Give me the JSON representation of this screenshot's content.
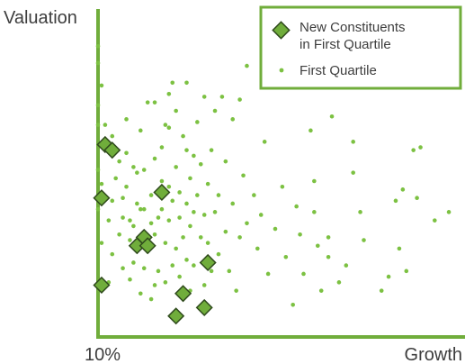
{
  "chart_data": {
    "type": "scatter",
    "title": "",
    "xlabel": "Growth",
    "ylabel": "Valuation",
    "x_tick_label": "10%",
    "xlim": [
      0,
      100
    ],
    "ylim": [
      0,
      100
    ],
    "grid": false,
    "legend_position": "top-right",
    "colors": {
      "points": "#7cc142",
      "diamond_fill": "#70ad3b",
      "diamond_stroke": "#2f4a1c",
      "axis": "#70ad3b",
      "legend_border": "#70ad3b"
    },
    "series": [
      {
        "name": "New Constituents\nin First Quartile",
        "marker": "diamond",
        "points": [
          [
            2,
            63
          ],
          [
            4,
            61
          ],
          [
            1,
            44
          ],
          [
            18,
            46
          ],
          [
            13,
            30
          ],
          [
            11,
            27
          ],
          [
            14,
            27
          ],
          [
            31,
            21
          ],
          [
            1,
            13
          ],
          [
            24,
            10
          ],
          [
            30,
            5
          ],
          [
            22,
            2
          ]
        ]
      },
      {
        "name": "First Quartile",
        "marker": "dot",
        "points": [
          [
            0,
            40
          ],
          [
            0,
            54
          ],
          [
            0,
            70
          ],
          [
            0,
            77
          ],
          [
            0,
            92
          ],
          [
            0,
            98
          ],
          [
            1,
            28
          ],
          [
            1,
            49
          ],
          [
            1,
            84
          ],
          [
            2,
            70
          ],
          [
            3,
            14
          ],
          [
            3,
            36
          ],
          [
            4,
            24
          ],
          [
            4,
            43
          ],
          [
            4,
            66
          ],
          [
            5,
            51
          ],
          [
            6,
            31
          ],
          [
            6,
            57
          ],
          [
            7,
            19
          ],
          [
            7,
            37
          ],
          [
            7,
            44
          ],
          [
            8,
            48
          ],
          [
            8,
            60
          ],
          [
            8,
            72
          ],
          [
            9,
            15
          ],
          [
            9,
            29
          ],
          [
            9,
            36
          ],
          [
            10,
            21
          ],
          [
            10,
            34
          ],
          [
            10,
            55
          ],
          [
            11,
            42
          ],
          [
            11,
            53
          ],
          [
            12,
            10
          ],
          [
            12,
            40
          ],
          [
            12,
            68
          ],
          [
            13,
            19
          ],
          [
            13,
            40
          ],
          [
            13,
            54
          ],
          [
            14,
            25
          ],
          [
            14,
            78
          ],
          [
            15,
            8
          ],
          [
            15,
            35
          ],
          [
            15,
            45
          ],
          [
            16,
            13
          ],
          [
            16,
            31
          ],
          [
            16,
            58
          ],
          [
            16,
            78
          ],
          [
            17,
            18
          ],
          [
            17,
            37
          ],
          [
            18,
            40
          ],
          [
            18,
            50
          ],
          [
            18,
            62
          ],
          [
            19,
            14
          ],
          [
            19,
            28
          ],
          [
            19,
            70
          ],
          [
            20,
            36
          ],
          [
            20,
            48
          ],
          [
            20,
            69
          ],
          [
            20,
            81
          ],
          [
            21,
            20
          ],
          [
            21,
            43
          ],
          [
            21,
            85
          ],
          [
            22,
            26
          ],
          [
            22,
            55
          ],
          [
            22,
            75
          ],
          [
            23,
            16
          ],
          [
            23,
            37
          ],
          [
            23,
            46
          ],
          [
            24,
            30
          ],
          [
            24,
            66
          ],
          [
            25,
            22
          ],
          [
            25,
            42
          ],
          [
            25,
            61
          ],
          [
            25,
            85
          ],
          [
            26,
            11
          ],
          [
            26,
            34
          ],
          [
            26,
            51
          ],
          [
            27,
            20
          ],
          [
            27,
            39
          ],
          [
            27,
            59
          ],
          [
            28,
            45
          ],
          [
            28,
            71
          ],
          [
            29,
            30
          ],
          [
            29,
            56
          ],
          [
            30,
            13
          ],
          [
            30,
            38
          ],
          [
            30,
            80
          ],
          [
            31,
            28
          ],
          [
            31,
            49
          ],
          [
            32,
            18
          ],
          [
            32,
            61
          ],
          [
            33,
            39
          ],
          [
            33,
            75
          ],
          [
            34,
            24
          ],
          [
            34,
            45
          ],
          [
            35,
            80
          ],
          [
            36,
            32
          ],
          [
            36,
            57
          ],
          [
            37,
            18
          ],
          [
            38,
            42
          ],
          [
            38,
            72
          ],
          [
            39,
            11
          ],
          [
            40,
            30
          ],
          [
            40,
            79
          ],
          [
            41,
            52
          ],
          [
            42,
            35
          ],
          [
            42,
            91
          ],
          [
            44,
            45
          ],
          [
            45,
            26
          ],
          [
            46,
            38
          ],
          [
            47,
            64
          ],
          [
            48,
            17
          ],
          [
            50,
            33
          ],
          [
            52,
            48
          ],
          [
            53,
            23
          ],
          [
            55,
            6
          ],
          [
            56,
            41
          ],
          [
            57,
            31
          ],
          [
            58,
            17
          ],
          [
            60,
            68
          ],
          [
            61,
            39
          ],
          [
            61,
            50
          ],
          [
            62,
            27
          ],
          [
            63,
            11
          ],
          [
            65,
            23
          ],
          [
            65,
            30
          ],
          [
            66,
            73
          ],
          [
            68,
            14
          ],
          [
            70,
            20
          ],
          [
            72,
            53
          ],
          [
            72,
            64
          ],
          [
            74,
            39
          ],
          [
            75,
            29
          ],
          [
            80,
            11
          ],
          [
            82,
            16
          ],
          [
            84,
            43
          ],
          [
            85,
            26
          ],
          [
            86,
            47
          ],
          [
            87,
            18
          ],
          [
            89,
            61
          ],
          [
            90,
            44
          ],
          [
            91,
            62
          ],
          [
            95,
            36
          ],
          [
            99,
            39
          ]
        ]
      }
    ]
  }
}
